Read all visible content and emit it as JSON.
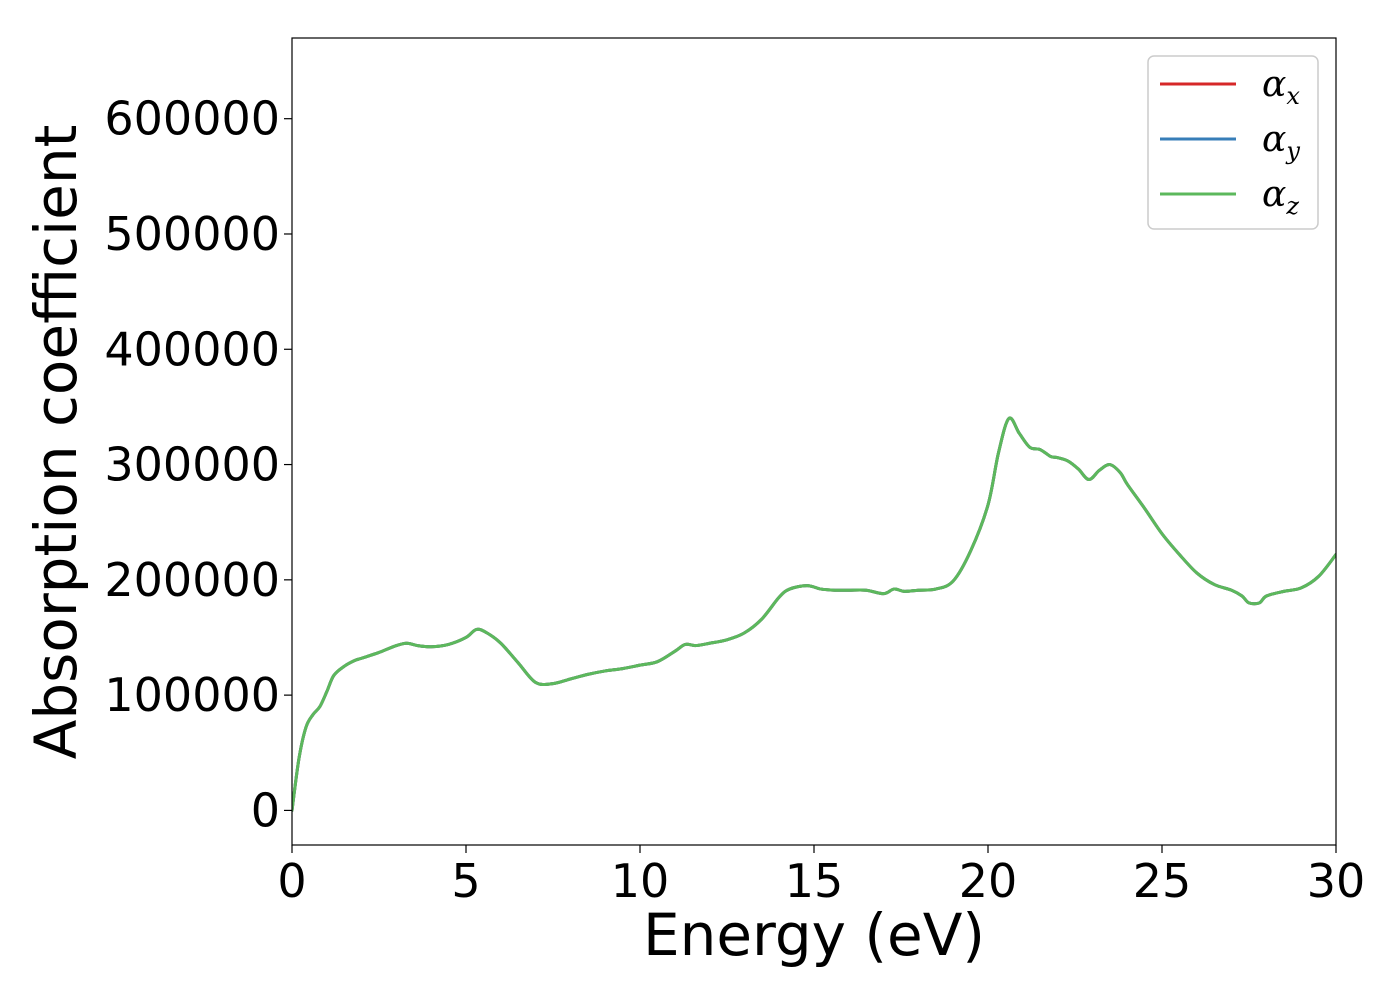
{
  "chart_data": {
    "type": "line",
    "title": "",
    "xlabel": "Energy (eV)",
    "ylabel": "Absorption coefficient",
    "xlim": [
      0,
      30
    ],
    "ylim": [
      -30000,
      670000
    ],
    "xticks": [
      0,
      5,
      10,
      15,
      20,
      25,
      30
    ],
    "yticks": [
      0,
      100000,
      200000,
      300000,
      400000,
      500000,
      600000
    ],
    "grid": false,
    "legend_position": "top-right",
    "x": [
      0,
      0.2,
      0.4,
      0.6,
      0.8,
      1.0,
      1.2,
      1.5,
      1.8,
      2.0,
      2.5,
      3.0,
      3.3,
      3.6,
      4.0,
      4.5,
      5.0,
      5.3,
      5.6,
      6.0,
      6.5,
      7.0,
      7.5,
      8.0,
      8.5,
      9.0,
      9.5,
      10.0,
      10.5,
      11.0,
      11.3,
      11.6,
      12.0,
      12.5,
      13.0,
      13.5,
      14.0,
      14.3,
      14.8,
      15.2,
      15.6,
      16.0,
      16.5,
      17.0,
      17.3,
      17.6,
      18.0,
      18.5,
      19.0,
      19.5,
      20.0,
      20.3,
      20.6,
      20.9,
      21.2,
      21.5,
      21.8,
      22.0,
      22.3,
      22.6,
      22.9,
      23.2,
      23.5,
      23.8,
      24.0,
      24.5,
      25.0,
      25.5,
      26.0,
      26.5,
      27.0,
      27.3,
      27.5,
      27.8,
      28.0,
      28.5,
      29.0,
      29.5,
      30.0
    ],
    "series": [
      {
        "name": "α_x",
        "label_base": "α",
        "label_sub": "x",
        "color": "#d62728",
        "values": [
          0,
          45000,
          72000,
          83000,
          90000,
          103000,
          117000,
          125000,
          130000,
          132000,
          137000,
          143000,
          145000,
          143000,
          142000,
          144000,
          150000,
          157000,
          154000,
          145000,
          128000,
          111000,
          110000,
          114000,
          118000,
          121000,
          123000,
          126000,
          129000,
          138000,
          144000,
          143000,
          145000,
          148000,
          154000,
          166000,
          185000,
          192000,
          195000,
          192000,
          191000,
          191000,
          191000,
          188000,
          192000,
          190000,
          191000,
          192000,
          199000,
          225000,
          265000,
          310000,
          340000,
          327000,
          315000,
          313000,
          307000,
          306000,
          303000,
          296000,
          287000,
          295000,
          300000,
          293000,
          283000,
          262000,
          240000,
          222000,
          206000,
          196000,
          191000,
          186000,
          180000,
          180000,
          186000,
          190000,
          193000,
          203000,
          222000
        ]
      },
      {
        "name": "α_y",
        "label_base": "α",
        "label_sub": "y",
        "color": "#377eb8",
        "values": [
          0,
          45000,
          72000,
          83000,
          90000,
          103000,
          117000,
          125000,
          130000,
          132000,
          137000,
          143000,
          145000,
          143000,
          142000,
          144000,
          150000,
          157000,
          154000,
          145000,
          128000,
          111000,
          110000,
          114000,
          118000,
          121000,
          123000,
          126000,
          129000,
          138000,
          144000,
          143000,
          145000,
          148000,
          154000,
          166000,
          185000,
          192000,
          195000,
          192000,
          191000,
          191000,
          191000,
          188000,
          192000,
          190000,
          191000,
          192000,
          199000,
          225000,
          265000,
          310000,
          340000,
          327000,
          315000,
          313000,
          307000,
          306000,
          303000,
          296000,
          287000,
          295000,
          300000,
          293000,
          283000,
          262000,
          240000,
          222000,
          206000,
          196000,
          191000,
          186000,
          180000,
          180000,
          186000,
          190000,
          193000,
          203000,
          222000
        ]
      },
      {
        "name": "α_z",
        "label_base": "α",
        "label_sub": "z",
        "color": "#5cb85c",
        "values": [
          0,
          45000,
          72000,
          83000,
          90000,
          103000,
          117000,
          125000,
          130000,
          132000,
          137000,
          143000,
          145000,
          143000,
          142000,
          144000,
          150000,
          157000,
          154000,
          145000,
          128000,
          111000,
          110000,
          114000,
          118000,
          121000,
          123000,
          126000,
          129000,
          138000,
          144000,
          143000,
          145000,
          148000,
          154000,
          166000,
          185000,
          192000,
          195000,
          192000,
          191000,
          191000,
          191000,
          188000,
          192000,
          190000,
          191000,
          192000,
          199000,
          225000,
          265000,
          310000,
          340000,
          327000,
          315000,
          313000,
          307000,
          306000,
          303000,
          296000,
          287000,
          295000,
          300000,
          293000,
          283000,
          262000,
          240000,
          222000,
          206000,
          196000,
          191000,
          186000,
          180000,
          180000,
          186000,
          190000,
          193000,
          203000,
          222000
        ]
      }
    ]
  }
}
